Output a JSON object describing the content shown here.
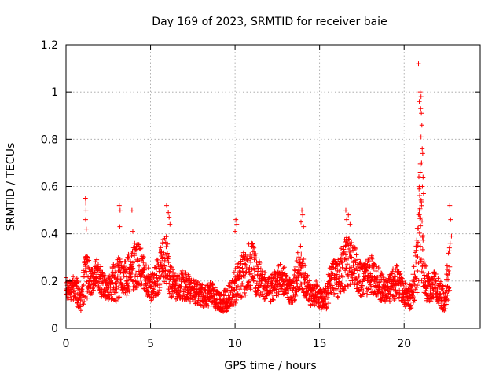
{
  "chart_data": {
    "type": "scatter",
    "title": "Day 169 of 2023, SRMTID for receiver baie",
    "xlabel": "GPS time / hours",
    "ylabel": "SRMTID / TECUs",
    "xlim": [
      0,
      24.5
    ],
    "ylim": [
      0,
      1.2
    ],
    "xticks": [
      0,
      5,
      10,
      15,
      20
    ],
    "xtick_labels": [
      "0",
      "5",
      "10",
      "15",
      "20"
    ],
    "yticks": [
      0,
      0.2,
      0.4,
      0.6,
      0.8,
      1.0,
      1.2
    ],
    "ytick_labels": [
      "0",
      "0.2",
      "0.4",
      "0.6",
      "0.8",
      "1",
      "1.2"
    ],
    "grid": true,
    "marker": "+",
    "color": "#ff0000",
    "series": [
      {
        "name": "SRMTID",
        "anchors": {
          "x": [
            0.0,
            0.3,
            0.6,
            0.9,
            1.1,
            1.2,
            1.5,
            1.8,
            2.1,
            2.4,
            2.7,
            3.0,
            3.1,
            3.3,
            3.6,
            3.9,
            4.2,
            4.5,
            4.8,
            5.1,
            5.4,
            5.7,
            5.9,
            6.2,
            6.5,
            6.8,
            7.1,
            7.4,
            7.7,
            8.0,
            8.3,
            8.6,
            8.9,
            9.2,
            9.5,
            9.8,
            10.1,
            10.4,
            10.7,
            11.0,
            11.3,
            11.6,
            11.9,
            12.2,
            12.5,
            12.8,
            13.1,
            13.4,
            13.7,
            13.9,
            14.2,
            14.5,
            14.8,
            15.1,
            15.4,
            15.7,
            16.0,
            16.3,
            16.6,
            16.9,
            17.2,
            17.5,
            17.8,
            18.1,
            18.4,
            18.7,
            19.0,
            19.3,
            19.6,
            19.9,
            20.2,
            20.5,
            20.8,
            20.9,
            21.0,
            21.2,
            21.5,
            21.8,
            22.1,
            22.4,
            22.7
          ],
          "y": [
            0.18,
            0.17,
            0.16,
            0.12,
            0.2,
            0.22,
            0.2,
            0.24,
            0.2,
            0.17,
            0.19,
            0.2,
            0.24,
            0.2,
            0.22,
            0.25,
            0.27,
            0.25,
            0.2,
            0.17,
            0.22,
            0.27,
            0.3,
            0.2,
            0.17,
            0.19,
            0.18,
            0.16,
            0.15,
            0.14,
            0.13,
            0.15,
            0.12,
            0.11,
            0.12,
            0.15,
            0.19,
            0.21,
            0.25,
            0.27,
            0.22,
            0.2,
            0.16,
            0.17,
            0.2,
            0.21,
            0.17,
            0.15,
            0.23,
            0.27,
            0.18,
            0.14,
            0.15,
            0.12,
            0.13,
            0.22,
            0.2,
            0.25,
            0.28,
            0.27,
            0.25,
            0.2,
            0.22,
            0.23,
            0.2,
            0.17,
            0.15,
            0.18,
            0.2,
            0.17,
            0.12,
            0.15,
            0.3,
            0.52,
            0.4,
            0.2,
            0.17,
            0.18,
            0.15,
            0.12,
            0.26
          ],
          "spread": [
            0.05,
            0.05,
            0.06,
            0.05,
            0.09,
            0.1,
            0.06,
            0.06,
            0.07,
            0.05,
            0.07,
            0.09,
            0.12,
            0.07,
            0.08,
            0.1,
            0.1,
            0.08,
            0.07,
            0.06,
            0.08,
            0.1,
            0.11,
            0.07,
            0.05,
            0.07,
            0.06,
            0.05,
            0.05,
            0.05,
            0.05,
            0.05,
            0.04,
            0.04,
            0.05,
            0.06,
            0.08,
            0.1,
            0.1,
            0.1,
            0.09,
            0.07,
            0.05,
            0.06,
            0.06,
            0.07,
            0.06,
            0.05,
            0.09,
            0.11,
            0.06,
            0.05,
            0.05,
            0.04,
            0.05,
            0.09,
            0.08,
            0.1,
            0.12,
            0.1,
            0.09,
            0.07,
            0.08,
            0.08,
            0.07,
            0.06,
            0.05,
            0.07,
            0.07,
            0.06,
            0.05,
            0.06,
            0.15,
            0.3,
            0.2,
            0.08,
            0.06,
            0.06,
            0.06,
            0.05,
            0.12
          ]
        },
        "extreme_points": [
          [
            1.15,
            0.55
          ],
          [
            1.17,
            0.53
          ],
          [
            1.18,
            0.5
          ],
          [
            1.16,
            0.46
          ],
          [
            1.2,
            0.42
          ],
          [
            3.15,
            0.52
          ],
          [
            3.2,
            0.5
          ],
          [
            3.18,
            0.43
          ],
          [
            3.9,
            0.5
          ],
          [
            3.95,
            0.41
          ],
          [
            5.95,
            0.52
          ],
          [
            6.05,
            0.49
          ],
          [
            6.1,
            0.47
          ],
          [
            6.15,
            0.44
          ],
          [
            10.05,
            0.46
          ],
          [
            10.1,
            0.44
          ],
          [
            10.0,
            0.41
          ],
          [
            13.95,
            0.5
          ],
          [
            14.0,
            0.48
          ],
          [
            13.9,
            0.45
          ],
          [
            14.05,
            0.43
          ],
          [
            16.55,
            0.5
          ],
          [
            16.7,
            0.48
          ],
          [
            16.6,
            0.46
          ],
          [
            16.8,
            0.44
          ],
          [
            20.85,
            1.12
          ],
          [
            20.95,
            1.0
          ],
          [
            21.0,
            0.98
          ],
          [
            20.9,
            0.96
          ],
          [
            20.98,
            0.93
          ],
          [
            21.02,
            0.91
          ],
          [
            21.05,
            0.86
          ],
          [
            21.0,
            0.81
          ],
          [
            21.07,
            0.76
          ],
          [
            21.1,
            0.74
          ],
          [
            21.03,
            0.7
          ],
          [
            20.95,
            0.66
          ],
          [
            21.12,
            0.64
          ],
          [
            21.08,
            0.6
          ],
          [
            21.15,
            0.57
          ],
          [
            20.9,
            0.5
          ],
          [
            22.7,
            0.52
          ],
          [
            22.75,
            0.46
          ],
          [
            22.8,
            0.39
          ],
          [
            22.72,
            0.36
          ]
        ]
      }
    ]
  }
}
